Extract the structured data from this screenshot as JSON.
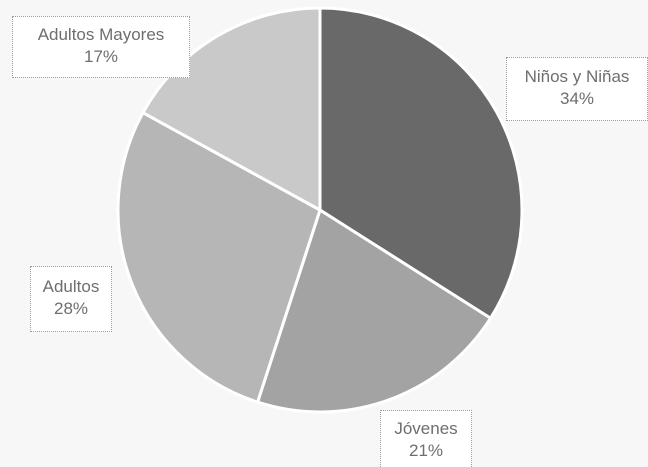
{
  "chart_data": {
    "type": "pie",
    "title": "",
    "slices": [
      {
        "label": "Niños y Niñas",
        "value": 34,
        "value_label": "34%",
        "color": "#696969"
      },
      {
        "label": "Jóvenes",
        "value": 21,
        "value_label": "21%",
        "color": "#a3a3a3"
      },
      {
        "label": "Adultos",
        "value": 28,
        "value_label": "28%",
        "color": "#b6b6b6"
      },
      {
        "label": "Adultos Mayores",
        "value": 17,
        "value_label": "17%",
        "color": "#c9c9c9"
      }
    ],
    "slice_separator_color": "#ffffff",
    "start": "12 o'clock",
    "direction": "clockwise",
    "legend": "none",
    "data_labels": "callouts"
  }
}
